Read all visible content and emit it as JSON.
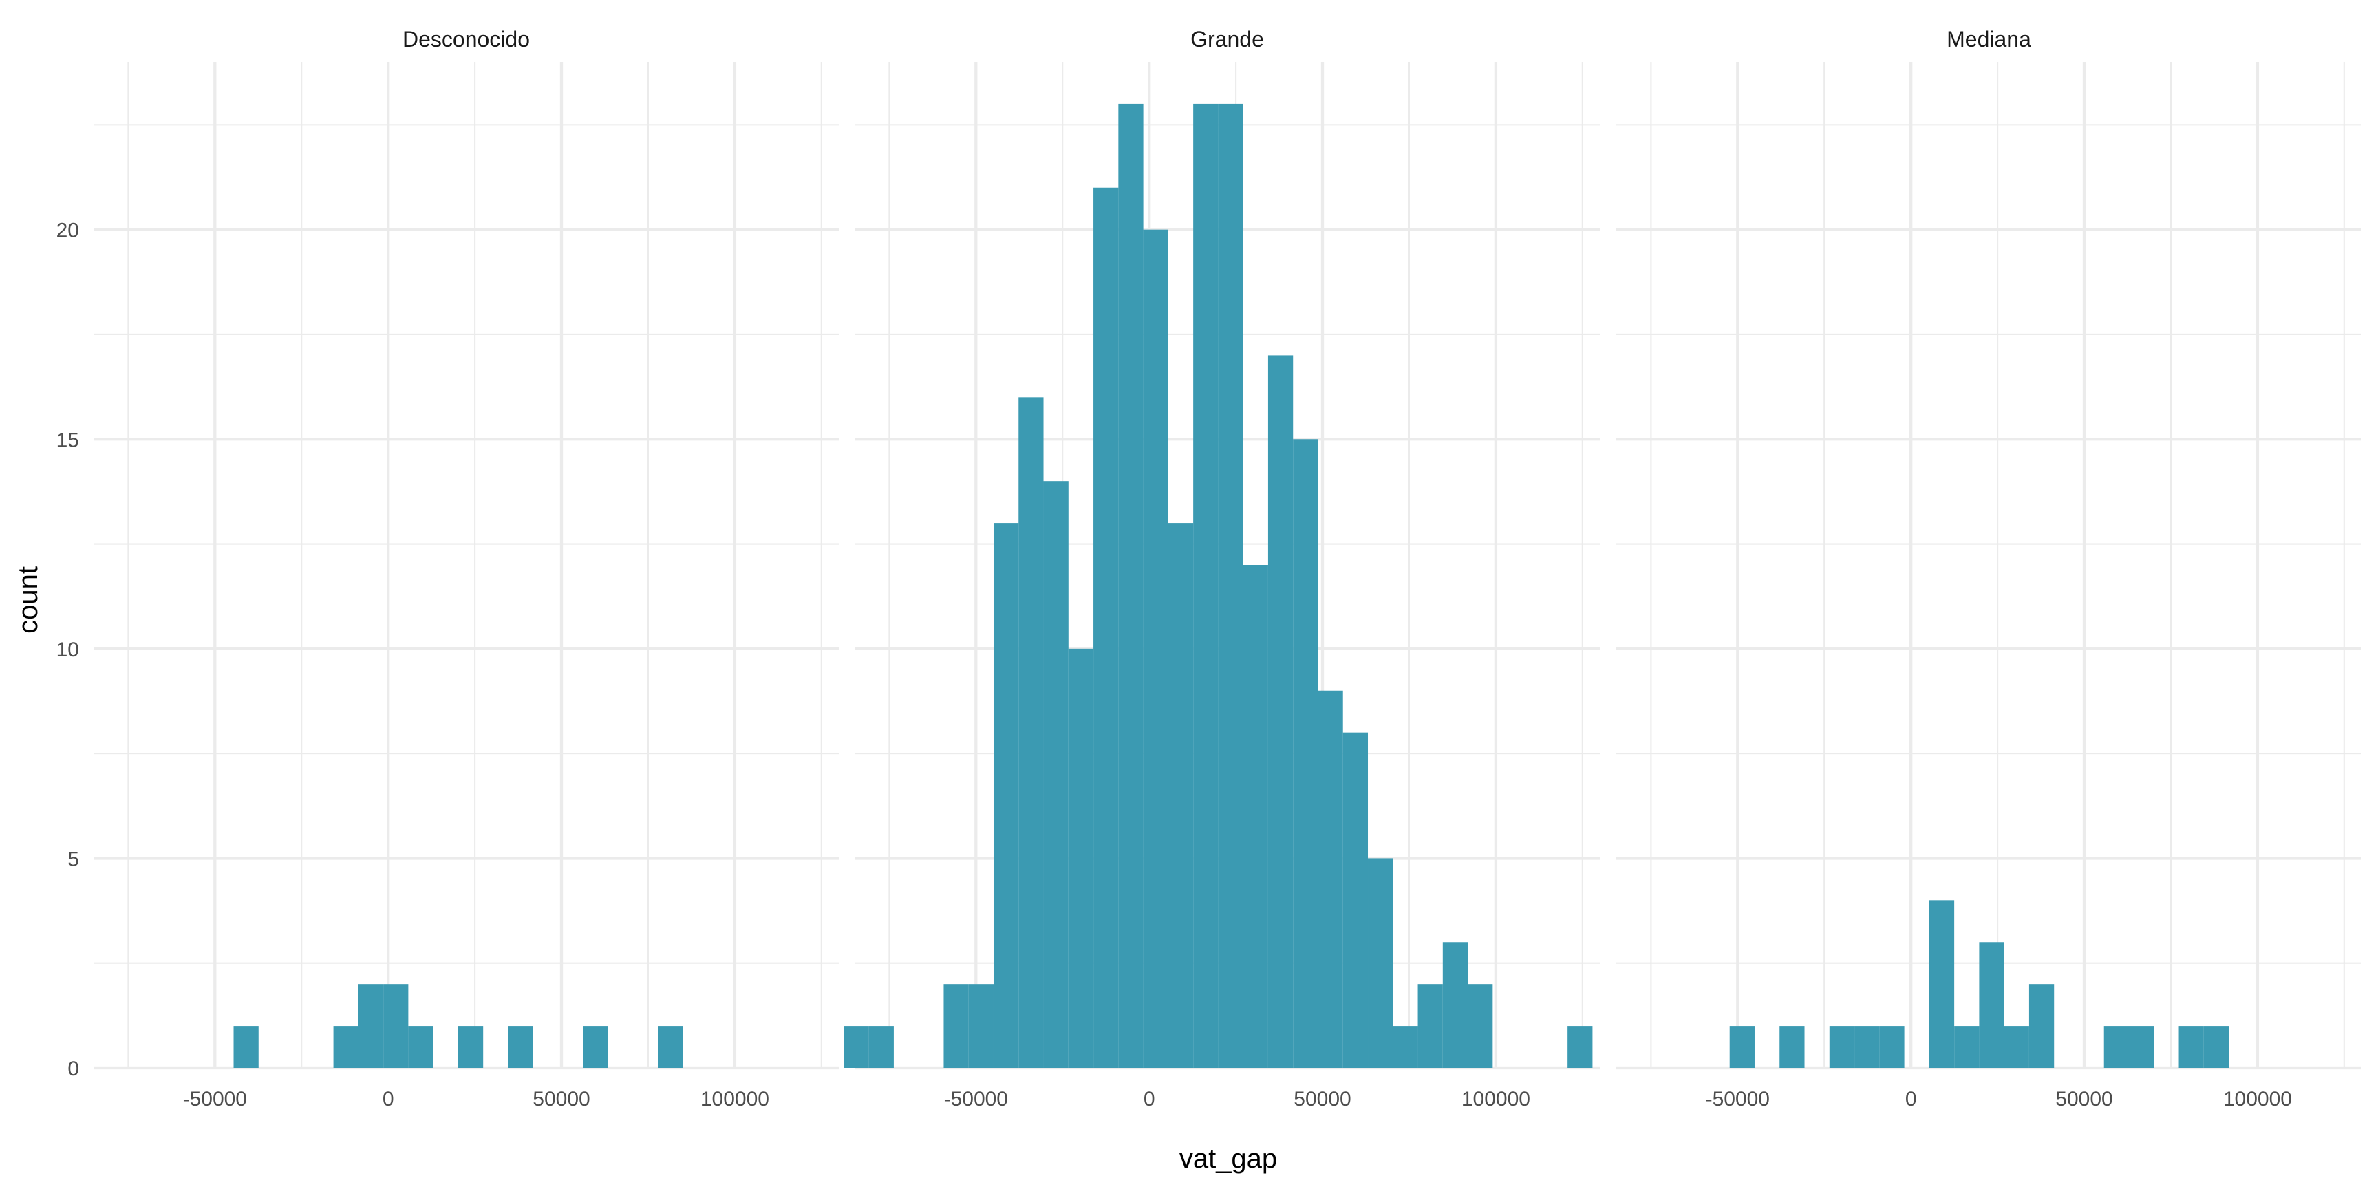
{
  "chart_data": {
    "type": "bar",
    "subtype": "faceted-histogram",
    "xlabel": "vat_gap",
    "ylabel": "count",
    "xlim": [
      -85000,
      130000
    ],
    "ylim": [
      0,
      24
    ],
    "x_ticks": [
      -50000,
      0,
      50000,
      100000
    ],
    "x_tick_labels": [
      "-50000",
      "0",
      "50000",
      "100000"
    ],
    "y_ticks": [
      0,
      5,
      10,
      15,
      20
    ],
    "y_tick_labels": [
      "0",
      "5",
      "10",
      "15",
      "20"
    ],
    "bin_width": 7200,
    "grid": true,
    "bar_color": "#3B9AB2",
    "facets": [
      {
        "name": "Desconocido",
        "bars": [
          {
            "x": -41000,
            "count": 1
          },
          {
            "x": -12200,
            "count": 1
          },
          {
            "x": -5000,
            "count": 2
          },
          {
            "x": 2200,
            "count": 2
          },
          {
            "x": 9400,
            "count": 1
          },
          {
            "x": 23800,
            "count": 1
          },
          {
            "x": 38200,
            "count": 1
          },
          {
            "x": 59800,
            "count": 1
          },
          {
            "x": 81400,
            "count": 1
          }
        ]
      },
      {
        "name": "Grande",
        "bars": [
          {
            "x": -84500,
            "count": 1
          },
          {
            "x": -77300,
            "count": 1
          },
          {
            "x": -55700,
            "count": 2
          },
          {
            "x": -48500,
            "count": 2
          },
          {
            "x": -41300,
            "count": 13
          },
          {
            "x": -34100,
            "count": 16
          },
          {
            "x": -26900,
            "count": 14
          },
          {
            "x": -19700,
            "count": 10
          },
          {
            "x": -12500,
            "count": 21
          },
          {
            "x": -5300,
            "count": 23
          },
          {
            "x": 1900,
            "count": 20
          },
          {
            "x": 9100,
            "count": 13
          },
          {
            "x": 16300,
            "count": 23
          },
          {
            "x": 23500,
            "count": 23
          },
          {
            "x": 30700,
            "count": 12
          },
          {
            "x": 37900,
            "count": 17
          },
          {
            "x": 45100,
            "count": 15
          },
          {
            "x": 52300,
            "count": 9
          },
          {
            "x": 59500,
            "count": 8
          },
          {
            "x": 66700,
            "count": 5
          },
          {
            "x": 73900,
            "count": 1
          },
          {
            "x": 81100,
            "count": 2
          },
          {
            "x": 88300,
            "count": 3
          },
          {
            "x": 95500,
            "count": 2
          },
          {
            "x": 124300,
            "count": 1
          }
        ]
      },
      {
        "name": "Mediana",
        "bars": [
          {
            "x": -48700,
            "count": 1
          },
          {
            "x": -34300,
            "count": 1
          },
          {
            "x": -19900,
            "count": 1
          },
          {
            "x": -12700,
            "count": 1
          },
          {
            "x": -5500,
            "count": 1
          },
          {
            "x": 8900,
            "count": 4
          },
          {
            "x": 16100,
            "count": 1
          },
          {
            "x": 23300,
            "count": 3
          },
          {
            "x": 30500,
            "count": 1
          },
          {
            "x": 37700,
            "count": 2
          },
          {
            "x": 59300,
            "count": 1
          },
          {
            "x": 66500,
            "count": 1
          },
          {
            "x": 80900,
            "count": 1
          },
          {
            "x": 88100,
            "count": 1
          }
        ]
      }
    ]
  }
}
